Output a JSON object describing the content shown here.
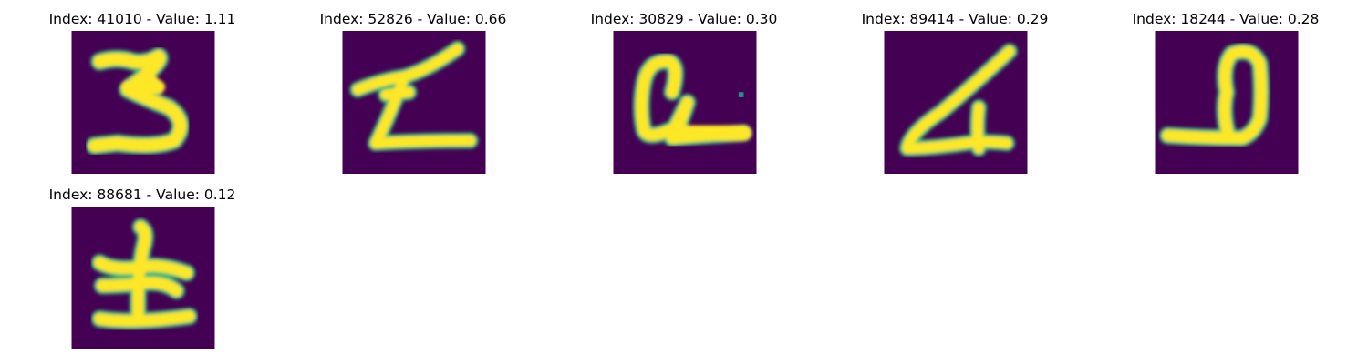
{
  "colors": {
    "background": "#440154",
    "stroke_core": "#fde725",
    "stroke_edge": "#35b779",
    "stroke_faint": "#21918c"
  },
  "panels": [
    {
      "title": "Index: 41010 - Value: 1.11"
    },
    {
      "title": "Index: 52826 - Value: 0.66"
    },
    {
      "title": "Index: 30829 - Value: 0.30"
    },
    {
      "title": "Index: 89414 - Value: 0.29"
    },
    {
      "title": "Index: 18244 - Value: 0.28"
    },
    {
      "title": "Index: 88681 - Value: 0.12"
    }
  ]
}
